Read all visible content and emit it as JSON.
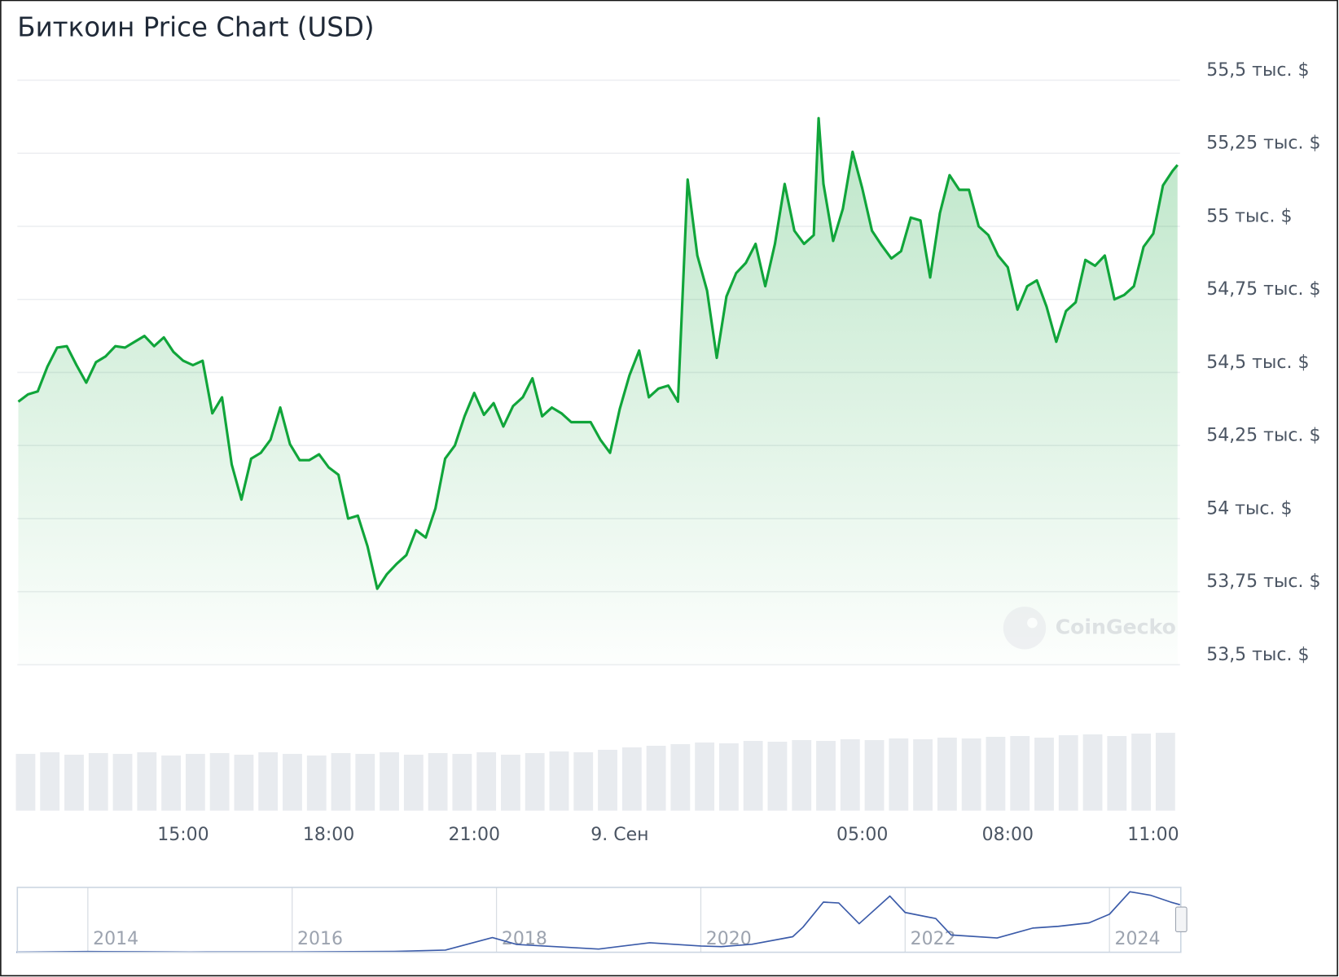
{
  "chart_data": [
    {
      "type": "line",
      "title": "Биткоин Price Chart (USD)",
      "watermark": "CoinGecko",
      "color": "#10a53a",
      "grid": true,
      "x": [
        11.6,
        11.8,
        12,
        12.2,
        12.4,
        12.6,
        12.8,
        13,
        13.2,
        13.4,
        13.6,
        13.8,
        14,
        14.2,
        14.4,
        14.6,
        14.8,
        15,
        15.2,
        15.4,
        15.6,
        15.8,
        16,
        16.2,
        16.4,
        16.6,
        16.8,
        17,
        17.2,
        17.4,
        17.6,
        17.8,
        18,
        18.2,
        18.4,
        18.6,
        18.8,
        19,
        19.2,
        19.4,
        19.6,
        19.8,
        20,
        20.2,
        20.4,
        20.6,
        20.8,
        21,
        21.2,
        21.4,
        21.6,
        21.8,
        22,
        22.2,
        22.4,
        22.6,
        22.8,
        23,
        23.2,
        23.4,
        23.6,
        23.8,
        24,
        24.2,
        24.4,
        24.6,
        24.8,
        25,
        25.2,
        25.4,
        25.6,
        25.8,
        26,
        26.2,
        26.4,
        26.6,
        26.8,
        27,
        27.2,
        27.4,
        27.6,
        27.8,
        28,
        28.1,
        28.2,
        28.4,
        28.6,
        28.8,
        29,
        29.2,
        29.4,
        29.6,
        29.8,
        30,
        30.2,
        30.4,
        30.6,
        30.8,
        31,
        31.2,
        31.4,
        31.6,
        31.8,
        32,
        32.2,
        32.4,
        32.6,
        32.8,
        33,
        33.2,
        33.4,
        33.6,
        33.8,
        34,
        34.2,
        34.4,
        34.6,
        34.8,
        35,
        35.2,
        35.4,
        35.5
      ],
      "values": [
        54400,
        54425,
        54435,
        54520,
        54585,
        54590,
        54525,
        54465,
        54535,
        54555,
        54590,
        54585,
        54605,
        54625,
        54590,
        54620,
        54570,
        54540,
        54525,
        54540,
        54360,
        54415,
        54185,
        54065,
        54205,
        54225,
        54270,
        54380,
        54255,
        54200,
        54200,
        54220,
        54175,
        54150,
        54000,
        54010,
        53905,
        53760,
        53810,
        53845,
        53875,
        53960,
        53935,
        54035,
        54205,
        54250,
        54350,
        54430,
        54355,
        54395,
        54315,
        54385,
        54415,
        54480,
        54350,
        54380,
        54360,
        54330,
        54330,
        54330,
        54270,
        54225,
        54375,
        54490,
        54575,
        54415,
        54445,
        54455,
        54400,
        55160,
        54900,
        54780,
        54550,
        54760,
        54840,
        54875,
        54940,
        54795,
        54940,
        55145,
        54985,
        54940,
        54970,
        55370,
        55145,
        54950,
        55060,
        55255,
        55130,
        54985,
        54935,
        54890,
        54915,
        55030,
        55020,
        54825,
        55045,
        55175,
        55125,
        55125,
        55000,
        54970,
        54900,
        54860,
        54715,
        54795,
        54815,
        54725,
        54605,
        54710,
        54740,
        54885,
        54865,
        54900,
        54750,
        54765,
        54795,
        54930,
        54975,
        55140,
        55190,
        55210
      ],
      "xlim": [
        11.58,
        35.55
      ],
      "xticks": [
        {
          "value": 15,
          "label": "15:00"
        },
        {
          "value": 18,
          "label": "18:00"
        },
        {
          "value": 21,
          "label": "21:00"
        },
        {
          "value": 24,
          "label": "9. Сен"
        },
        {
          "value": 29,
          "label": "05:00"
        },
        {
          "value": 32,
          "label": "08:00"
        },
        {
          "value": 35,
          "label": "11:00"
        }
      ],
      "ylim": [
        53500,
        55500
      ],
      "yticks": [
        {
          "value": 55500,
          "label": "55,5 тыс. $"
        },
        {
          "value": 55250,
          "label": "55,25 тыс. $"
        },
        {
          "value": 55000,
          "label": "55 тыс. $"
        },
        {
          "value": 54750,
          "label": "54,75 тыс. $"
        },
        {
          "value": 54500,
          "label": "54,5 тыс. $"
        },
        {
          "value": 54250,
          "label": "54,25 тыс. $"
        },
        {
          "value": 54000,
          "label": "54 тыс. $"
        },
        {
          "value": 53750,
          "label": "53,75 тыс. $"
        },
        {
          "value": 53500,
          "label": "53,5 тыс. $"
        }
      ]
    },
    {
      "type": "bar",
      "color": "#e8ebef",
      "x": [
        11.75,
        12.25,
        12.75,
        13.25,
        13.75,
        14.25,
        14.75,
        15.25,
        15.75,
        16.25,
        16.75,
        17.25,
        17.75,
        18.25,
        18.75,
        19.25,
        19.75,
        20.25,
        20.75,
        21.25,
        21.75,
        22.25,
        22.75,
        23.25,
        23.75,
        24.25,
        24.75,
        25.25,
        25.75,
        26.25,
        26.75,
        27.25,
        27.75,
        28.25,
        28.75,
        29.25,
        29.75,
        30.25,
        30.75,
        31.25,
        31.75,
        32.25,
        32.75,
        33.25,
        33.75,
        34.25,
        34.75,
        35.25
      ],
      "values": [
        70,
        72,
        69,
        71,
        70,
        72,
        68,
        70,
        71,
        69,
        72,
        70,
        68,
        71,
        70,
        72,
        69,
        71,
        70,
        72,
        69,
        71,
        73,
        72,
        75,
        78,
        80,
        82,
        84,
        83,
        86,
        85,
        87,
        86,
        88,
        87,
        89,
        88,
        90,
        89,
        91,
        92,
        90,
        93,
        94,
        92,
        95,
        96
      ],
      "xlim": [
        11.58,
        35.55
      ],
      "ylim": [
        0,
        100
      ]
    },
    {
      "type": "line",
      "color": "#3b5ba9",
      "x": [
        2013.3,
        2014,
        2014.5,
        2015,
        2016,
        2017,
        2017.5,
        2017.96,
        2018.2,
        2018.5,
        2019,
        2019.5,
        2020,
        2020.2,
        2020.5,
        2020.9,
        2021,
        2021.2,
        2021.35,
        2021.55,
        2021.85,
        2022,
        2022.3,
        2022.45,
        2022.9,
        2023.25,
        2023.5,
        2023.8,
        2024,
        2024.2,
        2024.4,
        2024.6,
        2024.69
      ],
      "values": [
        100,
        800,
        600,
        300,
        400,
        1000,
        2500,
        17000,
        9000,
        7000,
        3700,
        11000,
        7200,
        6500,
        9200,
        18000,
        29000,
        58000,
        57000,
        33000,
        65000,
        46000,
        39000,
        20000,
        16500,
        28000,
        30000,
        34000,
        44000,
        70000,
        66000,
        58000,
        55000
      ],
      "xlim": [
        2013.31,
        2024.69
      ],
      "ylim": [
        0,
        75000
      ],
      "xticks": [
        2014,
        2016,
        2018,
        2020,
        2022,
        2024
      ]
    }
  ]
}
